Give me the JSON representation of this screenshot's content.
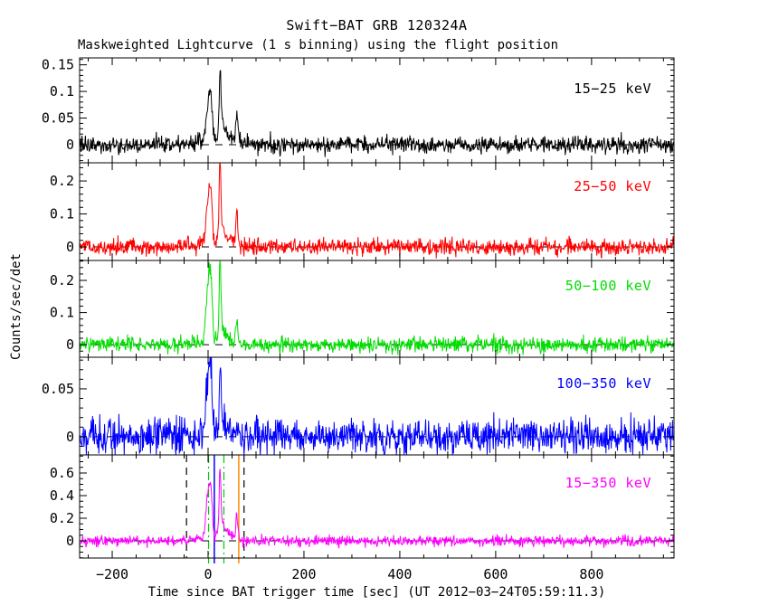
{
  "title": "Swift−BAT GRB 120324A",
  "subtitle": "Maskweighted Lightcurve (1 s binning) using the flight position",
  "chart_data": {
    "type": "line",
    "title": "Swift−BAT GRB 120324A",
    "subtitle": "Maskweighted Lightcurve (1 s binning) using the flight position",
    "xlabel": "Time since BAT trigger time [sec] (UT 2012−03−24T05:59:11.3)",
    "ylabel": "Counts/sec/det",
    "grid": false,
    "legend_position": "inside-upper-right-of-each-panel",
    "xlim": [
      -268,
      972
    ],
    "x_minor_step": 50,
    "xticks": [
      {
        "v": -200,
        "label": "−200"
      },
      {
        "v": 0,
        "label": "0"
      },
      {
        "v": 200,
        "label": "200"
      },
      {
        "v": 400,
        "label": "400"
      },
      {
        "v": 600,
        "label": "600"
      },
      {
        "v": 800,
        "label": "800"
      }
    ],
    "panels": [
      {
        "label": "15−25 keV",
        "color": "#000000",
        "ylim": [
          -0.034,
          0.163
        ],
        "y_minor_step": 0.01,
        "noise_sigma": 0.008,
        "peak_counts_sec_det": 0.15,
        "baseline": 0,
        "yticks": [
          {
            "v": 0,
            "label": "0"
          },
          {
            "v": 0.05,
            "label": "0.05"
          },
          {
            "v": 0.1,
            "label": "0.1"
          },
          {
            "v": 0.15,
            "label": "0.15"
          }
        ],
        "burst_components": [
          [
            15,
            30,
            0.01
          ],
          [
            -2,
            3.5,
            0.04
          ],
          [
            3,
            3,
            0.055
          ],
          [
            7,
            2.5,
            0.05
          ],
          [
            25,
            1.6,
            0.1
          ],
          [
            27,
            5,
            0.035
          ],
          [
            42,
            10,
            0.012
          ],
          [
            60,
            2.2,
            0.055
          ]
        ]
      },
      {
        "label": "25−50 keV",
        "color": "#ff0000",
        "ylim": [
          -0.041,
          0.255
        ],
        "y_minor_step": 0.02,
        "noise_sigma": 0.012,
        "peak_counts_sec_det": 0.25,
        "baseline": 0,
        "yticks": [
          {
            "v": 0,
            "label": "0"
          },
          {
            "v": 0.1,
            "label": "0.1"
          },
          {
            "v": 0.2,
            "label": "0.2"
          }
        ],
        "burst_components": [
          [
            15,
            30,
            0.013
          ],
          [
            -2,
            3.5,
            0.085
          ],
          [
            3,
            3,
            0.115
          ],
          [
            7,
            2.5,
            0.095
          ],
          [
            25,
            1.6,
            0.21
          ],
          [
            27,
            5,
            0.055
          ],
          [
            42,
            10,
            0.018
          ],
          [
            60,
            2.2,
            0.105
          ]
        ]
      },
      {
        "label": "50−100 keV",
        "color": "#00dd00",
        "ylim": [
          -0.039,
          0.262
        ],
        "y_minor_step": 0.02,
        "noise_sigma": 0.012,
        "peak_counts_sec_det": 0.26,
        "baseline": 0,
        "yticks": [
          {
            "v": 0,
            "label": "0"
          },
          {
            "v": 0.1,
            "label": "0.1"
          },
          {
            "v": 0.2,
            "label": "0.2"
          }
        ],
        "burst_components": [
          [
            15,
            30,
            0.012
          ],
          [
            -2,
            3.5,
            0.115
          ],
          [
            3,
            3,
            0.15
          ],
          [
            7,
            2.5,
            0.115
          ],
          [
            25,
            1.6,
            0.23
          ],
          [
            27,
            5,
            0.05
          ],
          [
            42,
            10,
            0.015
          ],
          [
            60,
            2.2,
            0.07
          ]
        ]
      },
      {
        "label": "100−350 keV",
        "color": "#0000ff",
        "ylim": [
          -0.019,
          0.083
        ],
        "y_minor_step": 0.01,
        "noise_sigma": 0.009,
        "peak_counts_sec_det": 0.08,
        "baseline": 0,
        "yticks": [
          {
            "v": 0,
            "label": "0"
          },
          {
            "v": 0.05,
            "label": "0.05"
          }
        ],
        "burst_components": [
          [
            15,
            30,
            0.004
          ],
          [
            -2,
            3.5,
            0.042
          ],
          [
            3,
            3,
            0.052
          ],
          [
            7,
            2.5,
            0.042
          ],
          [
            25,
            1.6,
            0.062
          ],
          [
            27,
            5,
            0.018
          ],
          [
            42,
            10,
            0.005
          ],
          [
            60,
            2.2,
            0.014
          ]
        ]
      },
      {
        "label": "15−350 keV",
        "color": "#ff00ff",
        "ylim": [
          -0.152,
          0.76
        ],
        "y_minor_step": 0.05,
        "noise_sigma": 0.022,
        "peak_counts_sec_det": 0.68,
        "baseline": 0,
        "yticks": [
          {
            "v": 0,
            "label": "0"
          },
          {
            "v": 0.2,
            "label": "0.2"
          },
          {
            "v": 0.4,
            "label": "0.4"
          },
          {
            "v": 0.6,
            "label": "0.6"
          }
        ],
        "burst_components": [
          [
            15,
            30,
            0.035
          ],
          [
            -2,
            3.5,
            0.26
          ],
          [
            3,
            3,
            0.31
          ],
          [
            7,
            2.5,
            0.27
          ],
          [
            25,
            1.6,
            0.48
          ],
          [
            27,
            5,
            0.14
          ],
          [
            42,
            10,
            0.045
          ],
          [
            60,
            2.2,
            0.22
          ]
        ]
      }
    ],
    "event_markers": [
      {
        "t": -45,
        "style": "dashed",
        "color": "#000000"
      },
      {
        "t": 75,
        "style": "dashed",
        "color": "#000000"
      },
      {
        "t": 1,
        "style": "dashdot",
        "color": "#00cc00"
      },
      {
        "t": 33,
        "style": "dashdot",
        "color": "#00cc00"
      },
      {
        "t": 13,
        "style": "solid",
        "color": "#0000ff"
      },
      {
        "t": 64,
        "style": "solid",
        "color": "#ff8800"
      }
    ]
  }
}
